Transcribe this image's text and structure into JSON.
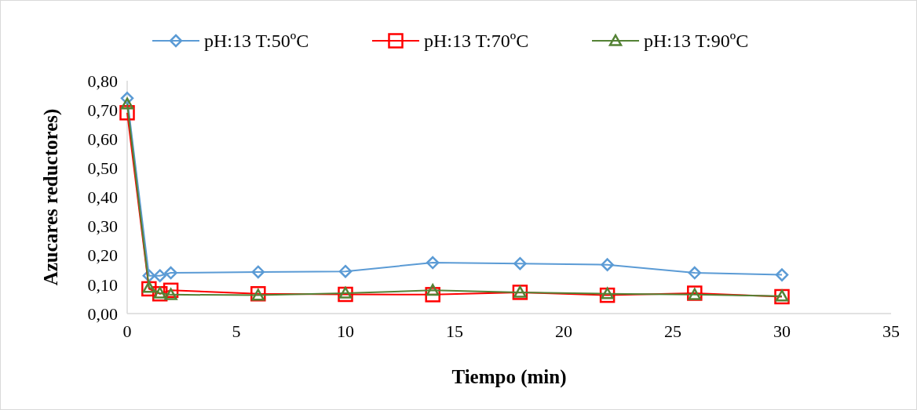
{
  "chart_data": {
    "type": "line",
    "xlabel": "Tiempo (min)",
    "ylabel": "Azucares reductores)",
    "xlim": [
      0,
      35
    ],
    "xticks": [
      0,
      5,
      10,
      15,
      20,
      25,
      30,
      35
    ],
    "ylim": [
      0,
      0.8
    ],
    "yticks": [
      {
        "value": 0,
        "label": "0,00"
      },
      {
        "value": 0.1,
        "label": "0,10"
      },
      {
        "value": 0.2,
        "label": "0,20"
      },
      {
        "value": 0.3,
        "label": "0,30"
      },
      {
        "value": 0.4,
        "label": "0,40"
      },
      {
        "value": 0.5,
        "label": "0,50"
      },
      {
        "value": 0.6,
        "label": "0,60"
      },
      {
        "value": 0.7,
        "label": "0,70"
      },
      {
        "value": 0.8,
        "label": "0,80"
      }
    ],
    "x": [
      0,
      1,
      1.5,
      2,
      6,
      10,
      14,
      18,
      22,
      26,
      30
    ],
    "grid": false,
    "legend": "top",
    "series": [
      {
        "name": "pH:13 T:50ºC",
        "color": "#5b9bd5",
        "marker": "diamond",
        "values": [
          0.74,
          0.13,
          0.13,
          0.14,
          0.143,
          0.145,
          0.175,
          0.172,
          0.168,
          0.14,
          0.133
        ]
      },
      {
        "name": "pH:13 T:70ºC",
        "color": "#ff0000",
        "marker": "square",
        "values": [
          0.69,
          0.085,
          0.068,
          0.08,
          0.068,
          0.066,
          0.065,
          0.073,
          0.063,
          0.07,
          0.058
        ]
      },
      {
        "name": "pH:13 T:90ºC",
        "color": "#548235",
        "marker": "triangle",
        "values": [
          0.72,
          0.09,
          0.07,
          0.065,
          0.063,
          0.07,
          0.08,
          0.073,
          0.068,
          0.065,
          0.06
        ]
      }
    ]
  }
}
